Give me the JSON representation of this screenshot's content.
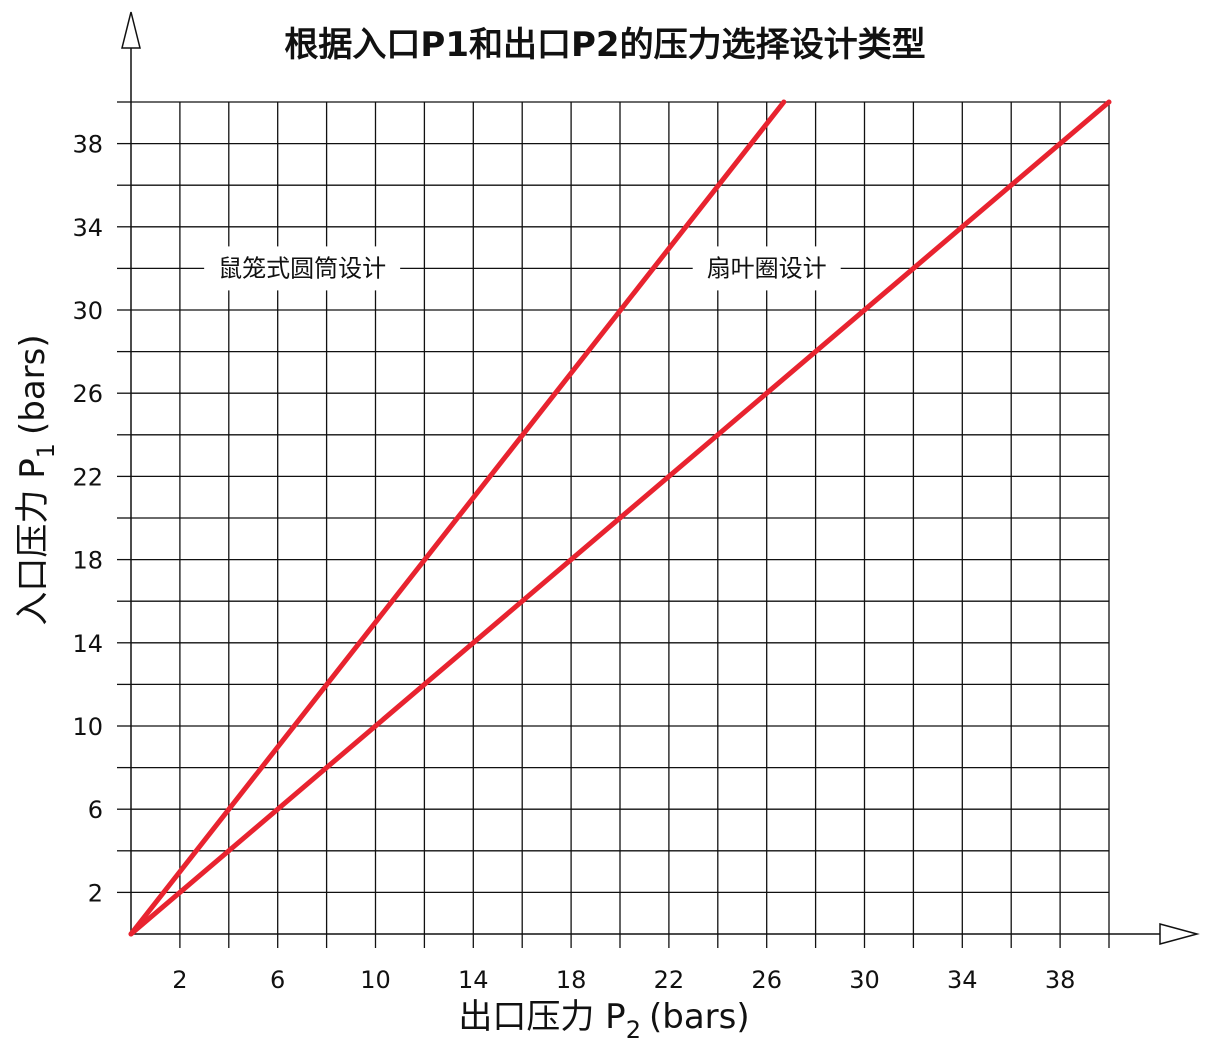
{
  "chart_data": {
    "type": "line",
    "title": "根据入口P1和出口P2的压力选择设计类型",
    "xlabel": {
      "main": "出口压力 P",
      "sub": "2",
      "unit": "(bars)"
    },
    "ylabel": {
      "main": "入口压力 P",
      "sub": "1",
      "unit": "(bars)"
    },
    "xlim": [
      0,
      40
    ],
    "ylim": [
      0,
      40
    ],
    "x_ticks": [
      2,
      6,
      10,
      14,
      18,
      22,
      26,
      30,
      34,
      38
    ],
    "y_ticks": [
      2,
      6,
      10,
      14,
      18,
      22,
      26,
      30,
      34,
      38
    ],
    "grid": true,
    "grid_step": 2,
    "series": [
      {
        "color": "#e8232f",
        "x": [
          0,
          26.7
        ],
        "y": [
          0,
          40
        ]
      },
      {
        "color": "#e8232f",
        "x": [
          0,
          40
        ],
        "y": [
          0,
          40
        ]
      }
    ],
    "annotations": [
      {
        "text": "鼠笼式圆筒设计",
        "x": 7,
        "y": 32
      },
      {
        "text": "扇叶圈设计",
        "x": 26,
        "y": 32
      }
    ]
  }
}
